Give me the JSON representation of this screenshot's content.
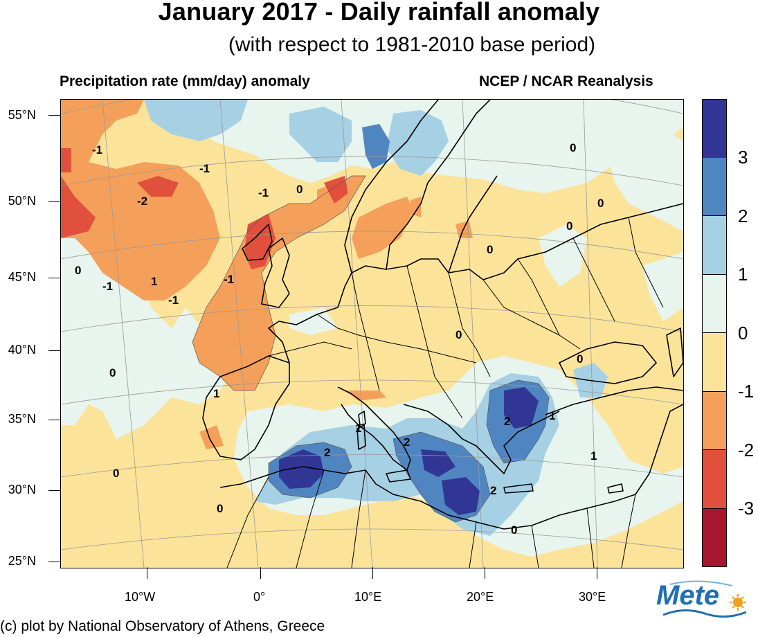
{
  "title": "January 2017 - Daily rainfall anomaly",
  "subtitle": "(with respect to 1981-2010 base period)",
  "left_label": "Precipitation rate (mm/day) anomaly",
  "right_label": "NCEP / NCAR Reanalysis",
  "footer": "(c) plot by National Observatory of Athens, Greece",
  "logo_text": "Mete",
  "lat_labels": [
    "55°N",
    "50°N",
    "45°N",
    "40°N",
    "35°N",
    "30°N",
    "25°N"
  ],
  "lon_labels": [
    "10°W",
    "0°",
    "10°E",
    "20°E",
    "30°E"
  ],
  "colorbar": {
    "labels": [
      "3",
      "2",
      "1",
      "0",
      "-1",
      "-2",
      "-3"
    ],
    "colors": [
      "#313695",
      "#4f86c2",
      "#a6d0e4",
      "#e8f4ee",
      "#fbe39a",
      "#f5a05a",
      "#e0503c",
      "#a8152e"
    ]
  },
  "contour_labels": [
    "-1",
    "-1",
    "-1",
    "-1",
    "-1",
    "-1",
    "-2",
    "0",
    "0",
    "0",
    "0",
    "0",
    "0",
    "0",
    "0",
    "0",
    "0",
    "0",
    "0",
    "1",
    "1",
    "1",
    "1",
    "1",
    "2",
    "2",
    "2",
    "2"
  ],
  "colors": {
    "base": "#fbe39a",
    "pos1": "#e8f4ee",
    "pos2": "#a6d0e4",
    "pos3": "#4f86c2",
    "pos4": "#313695",
    "neg1": "#f5a05a",
    "neg2": "#e0503c"
  }
}
